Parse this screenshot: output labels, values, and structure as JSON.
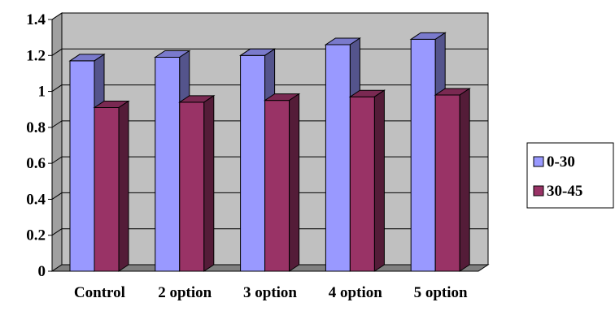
{
  "chart_data": {
    "type": "bar",
    "style": "3d-clustered-column",
    "categories": [
      "Control",
      "2 option",
      "3 option",
      "4 option",
      "5 option"
    ],
    "series": [
      {
        "name": "0-30",
        "values": [
          1.17,
          1.19,
          1.2,
          1.26,
          1.29
        ],
        "color": "#9999ff"
      },
      {
        "name": "30-45",
        "values": [
          0.91,
          0.94,
          0.95,
          0.97,
          0.98
        ],
        "color": "#993366"
      }
    ],
    "y_ticks": [
      "0",
      "0.2",
      "0.4",
      "0.6",
      "0.8",
      "1",
      "1.2",
      "1.4"
    ],
    "ylim": [
      0,
      1.4
    ],
    "grid": true,
    "legend_position": "right",
    "colors": {
      "wall": "#c0c0c0",
      "floor": "#808080",
      "gridline": "#000000"
    }
  }
}
